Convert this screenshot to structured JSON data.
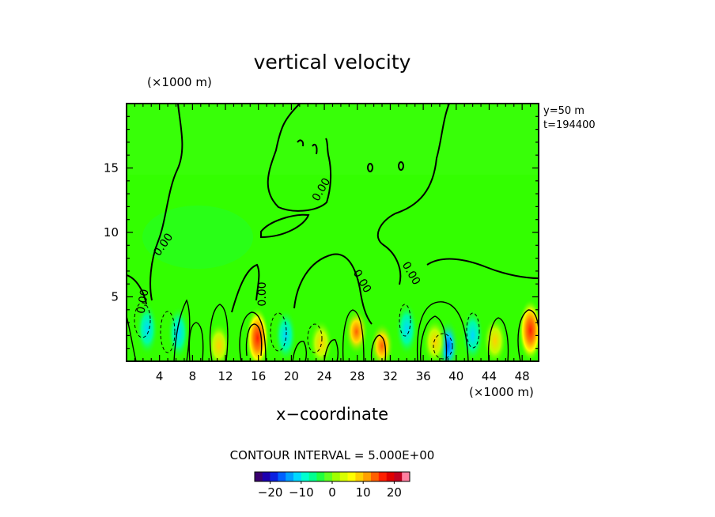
{
  "chart_data": {
    "type": "heatmap",
    "title": "vertical velocity",
    "xlabel": "x−coordinate",
    "x_unit": "(×1000 m)",
    "y_unit": "(×1000 m)",
    "xlim": [
      0,
      50
    ],
    "ylim": [
      0,
      20
    ],
    "x_ticks": [
      4,
      8,
      12,
      16,
      20,
      24,
      28,
      32,
      36,
      40,
      44,
      48
    ],
    "y_ticks": [
      5,
      10,
      15
    ],
    "grid": false,
    "annotations": {
      "y_position": "y=50 m",
      "time": "t=194400"
    },
    "contour_interval_text": "CONTOUR INTERVAL = 5.000E+00",
    "contour_labels": [
      "0.00",
      "0.00",
      "0.00",
      "0.00",
      "0.00",
      "0.00"
    ],
    "colorbar": {
      "min": -25,
      "max": 25,
      "tick_values": [
        -20,
        -10,
        0,
        10,
        20
      ],
      "tick_labels": [
        "−20",
        "−10",
        "0",
        "10",
        "20"
      ],
      "colors": [
        "#3a0070",
        "#1c00b0",
        "#0a20e0",
        "#0060ff",
        "#00a0ff",
        "#00d8ff",
        "#00ffd0",
        "#00ff90",
        "#20ff40",
        "#60ff20",
        "#a0ff00",
        "#d8ff00",
        "#ffff00",
        "#ffd000",
        "#ffa000",
        "#ff6000",
        "#ff2000",
        "#e00000",
        "#c00020",
        "#ff80a0"
      ]
    },
    "background_color": "#33ff00",
    "updraft_cells": [
      {
        "x": 15.9,
        "y": 1.8,
        "peak": 20
      },
      {
        "x": 49.0,
        "y": 2.4,
        "peak": 20
      },
      {
        "x": 27.9,
        "y": 2.3,
        "peak": 15
      },
      {
        "x": 31.0,
        "y": 1.2,
        "peak": 15
      },
      {
        "x": 37.4,
        "y": 1.5,
        "peak": 10
      },
      {
        "x": 44.7,
        "y": 1.6,
        "peak": 10
      },
      {
        "x": 23.6,
        "y": 1.4,
        "peak": 10
      },
      {
        "x": 11.2,
        "y": 1.2,
        "peak": 10
      }
    ],
    "downdraft_cells": [
      {
        "x": 2.5,
        "y": 2.5,
        "peak": -10
      },
      {
        "x": 6.3,
        "y": 2.2,
        "peak": -10
      },
      {
        "x": 19.3,
        "y": 2.0,
        "peak": -10
      },
      {
        "x": 39.0,
        "y": 1.2,
        "peak": -15
      },
      {
        "x": 42.0,
        "y": 2.0,
        "peak": -10
      },
      {
        "x": 34.0,
        "y": 2.5,
        "peak": -10
      }
    ]
  }
}
